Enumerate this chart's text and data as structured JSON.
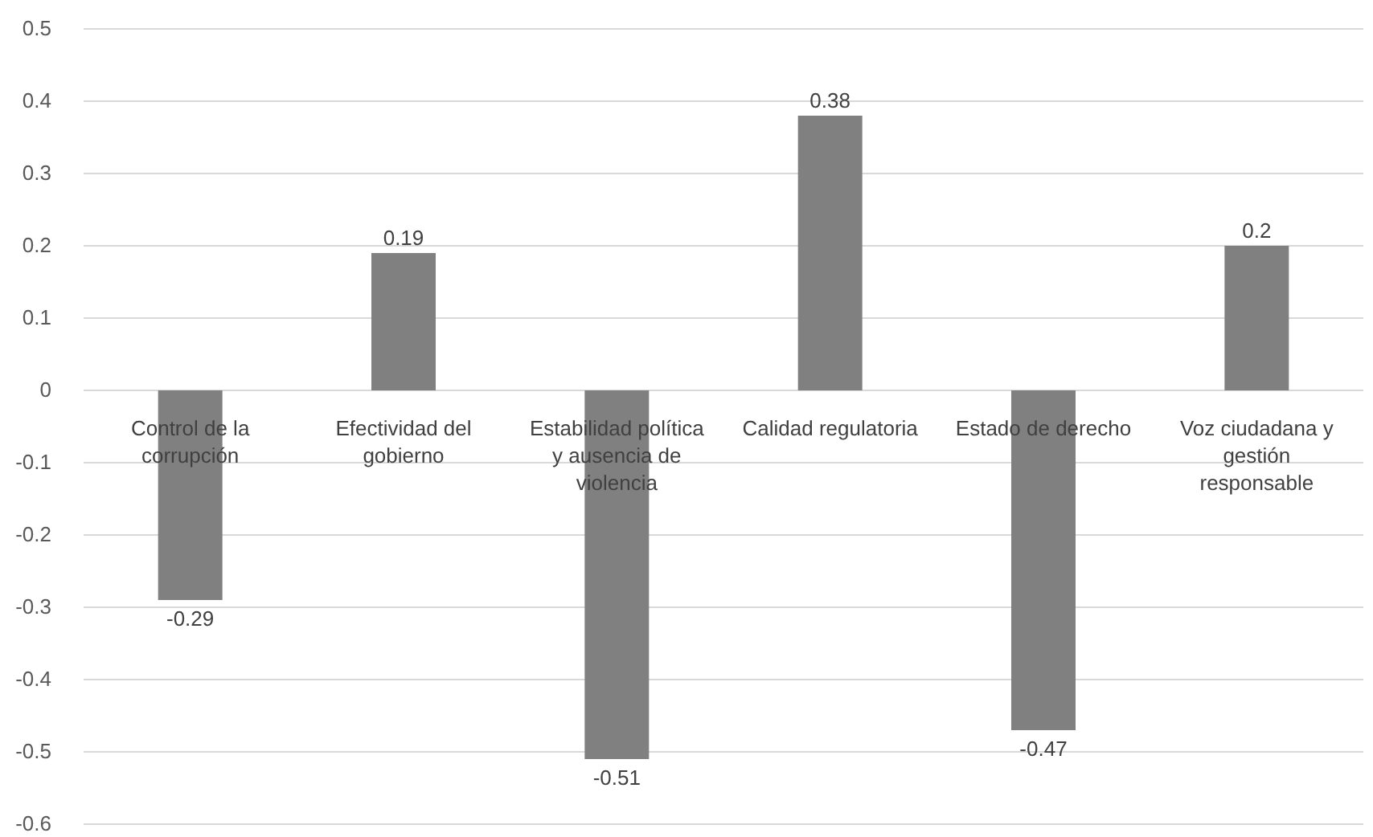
{
  "chart_data": {
    "type": "bar",
    "categories": [
      "Control de la corrupción",
      "Efectividad del gobierno",
      "Estabilidad política y ausencia de violencia",
      "Calidad regulatoria",
      "Estado de derecho",
      "Voz ciudadana y gestión responsable"
    ],
    "values": [
      -0.29,
      0.19,
      -0.51,
      0.38,
      -0.47,
      0.2
    ],
    "color": "#808080",
    "ylim": [
      -0.6,
      0.5
    ],
    "yticks": [
      -0.6,
      -0.5,
      -0.4,
      -0.3,
      -0.2,
      -0.1,
      0,
      0.1,
      0.2,
      0.3,
      0.4,
      0.5
    ],
    "grid": "y",
    "data_labels": true
  }
}
